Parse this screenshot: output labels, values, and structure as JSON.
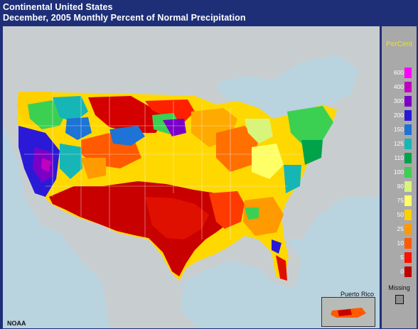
{
  "header": {
    "line1": "Continental United States",
    "line2": "December, 2005 Monthly Percent of Normal Precipitation"
  },
  "legend": {
    "title": "PerCent",
    "missing_label": "Missing",
    "missing_color": "#8e8e8e",
    "bins": [
      {
        "label": "600",
        "color": "#ff00ff"
      },
      {
        "label": "400",
        "color": "#c000c0"
      },
      {
        "label": "300",
        "color": "#7a00c8"
      },
      {
        "label": "200",
        "color": "#2a1ad8"
      },
      {
        "label": "150",
        "color": "#1d73d6"
      },
      {
        "label": "125",
        "color": "#16b6b6"
      },
      {
        "label": "110",
        "color": "#00a24a"
      },
      {
        "label": "100",
        "color": "#3cd052"
      },
      {
        "label": "90",
        "color": "#d9f47a"
      },
      {
        "label": "75",
        "color": "#ffff66"
      },
      {
        "label": "50",
        "color": "#ffd000"
      },
      {
        "label": "25",
        "color": "#ff9a00"
      },
      {
        "label": "10",
        "color": "#ff5a00"
      },
      {
        "label": "5",
        "color": "#ff1000"
      },
      {
        "label": "0",
        "color": "#c00000"
      }
    ]
  },
  "map": {
    "source_label": "NOAA",
    "inset_label": "Puerto Rico",
    "ocean_color": "#cfe3ee",
    "land_color": "#c4c8c4"
  }
}
